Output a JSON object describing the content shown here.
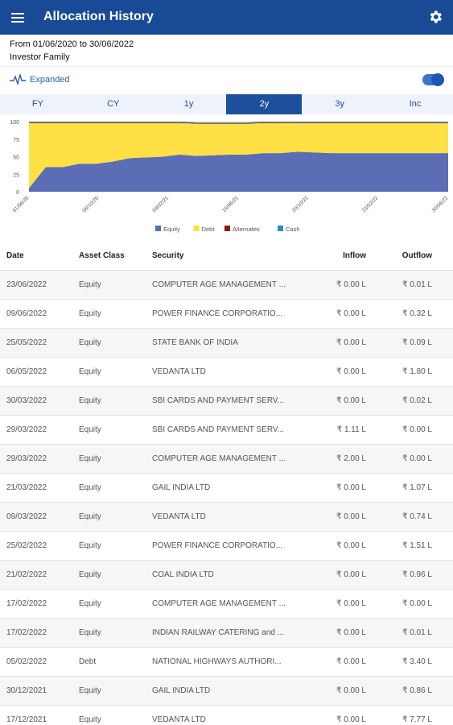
{
  "app": {
    "title": "Allocation History"
  },
  "info": {
    "date_range": "From 01/06/2020 to 30/06/2022",
    "investor": "Investor Family"
  },
  "toggle": {
    "label": "Expanded",
    "state": "on"
  },
  "tabs": [
    {
      "label": "FY",
      "active": false
    },
    {
      "label": "CY",
      "active": false
    },
    {
      "label": "1y",
      "active": false
    },
    {
      "label": "2y",
      "active": true
    },
    {
      "label": "3y",
      "active": false
    },
    {
      "label": "Inc",
      "active": false
    }
  ],
  "chart_data": {
    "type": "area",
    "stacked": true,
    "x": [
      "01/06/20",
      "16/06/20",
      "01/08/20",
      "01/09/20",
      "01/10/20",
      "01/11/20",
      "01/12/20",
      "01/01/21",
      "01/02/21",
      "01/03/21",
      "01/04/21",
      "01/05/21",
      "01/06/21",
      "01/07/21",
      "01/08/21",
      "01/09/21",
      "01/10/21",
      "01/11/21",
      "01/12/21",
      "01/01/22",
      "01/02/22",
      "01/03/22",
      "01/04/22",
      "01/05/22",
      "01/06/22",
      "30/06/22"
    ],
    "xticks": [
      "01/06/20",
      "06/10/20",
      "09/02/21",
      "15/06/21",
      "20/10/21",
      "23/02/22",
      "30/06/22"
    ],
    "ylim": [
      0,
      100
    ],
    "yticks": [
      0,
      25,
      50,
      75,
      100
    ],
    "series": [
      {
        "name": "Equity",
        "color": "#5b6db5",
        "values": [
          5,
          35,
          35,
          40,
          40,
          43,
          48,
          49,
          50,
          53,
          51,
          52,
          53,
          53,
          55,
          55,
          57,
          56,
          55,
          55,
          55,
          55,
          55,
          55,
          55,
          55
        ]
      },
      {
        "name": "Debt",
        "color": "#ffe045",
        "values": [
          93,
          63,
          63,
          58,
          58,
          55,
          50,
          49,
          48,
          45,
          46,
          45,
          44,
          44,
          43,
          43,
          41,
          42,
          43,
          43,
          43,
          43,
          43,
          43,
          43,
          43
        ]
      },
      {
        "name": "Alternates",
        "color": "#8b1a1a",
        "values": [
          1,
          1,
          1,
          1,
          1,
          1,
          1,
          1,
          1,
          1,
          1,
          1,
          1,
          1,
          1,
          1,
          1,
          1,
          1,
          1,
          1,
          1,
          1,
          1,
          1,
          1
        ]
      },
      {
        "name": "Cash",
        "color": "#2a8fb5",
        "values": [
          1,
          1,
          1,
          1,
          1,
          1,
          1,
          1,
          1,
          1,
          1,
          1,
          1,
          1,
          1,
          1,
          1,
          1,
          1,
          1,
          1,
          1,
          1,
          1,
          1,
          1
        ]
      }
    ]
  },
  "table": {
    "headers": {
      "date": "Date",
      "asset": "Asset Class",
      "security": "Security",
      "inflow": "Inflow",
      "outflow": "Outflow"
    },
    "rows": [
      {
        "date": "23/06/2022",
        "asset": "Equity",
        "security": "COMPUTER AGE MANAGEMENT ...",
        "inflow": "₹ 0.00 L",
        "outflow": "₹ 0.01 L"
      },
      {
        "date": "09/06/2022",
        "asset": "Equity",
        "security": "POWER FINANCE CORPORATIO...",
        "inflow": "₹ 0.00 L",
        "outflow": "₹ 0.32 L"
      },
      {
        "date": "25/05/2022",
        "asset": "Equity",
        "security": "STATE BANK OF INDIA",
        "inflow": "₹ 0.00 L",
        "outflow": "₹ 0.09 L"
      },
      {
        "date": "06/05/2022",
        "asset": "Equity",
        "security": "VEDANTA LTD",
        "inflow": "₹ 0.00 L",
        "outflow": "₹ 1.80 L"
      },
      {
        "date": "30/03/2022",
        "asset": "Equity",
        "security": "SBI CARDS AND PAYMENT SERV...",
        "inflow": "₹ 0.00 L",
        "outflow": "₹ 0.02 L"
      },
      {
        "date": "29/03/2022",
        "asset": "Equity",
        "security": "SBI CARDS AND PAYMENT SERV...",
        "inflow": "₹ 1.11 L",
        "outflow": "₹ 0.00 L"
      },
      {
        "date": "29/03/2022",
        "asset": "Equity",
        "security": "COMPUTER AGE MANAGEMENT ...",
        "inflow": "₹ 2.00 L",
        "outflow": "₹ 0.00 L"
      },
      {
        "date": "21/03/2022",
        "asset": "Equity",
        "security": "GAIL INDIA LTD",
        "inflow": "₹ 0.00 L",
        "outflow": "₹ 1.07 L"
      },
      {
        "date": "09/03/2022",
        "asset": "Equity",
        "security": "VEDANTA LTD",
        "inflow": "₹ 0.00 L",
        "outflow": "₹ 0.74 L"
      },
      {
        "date": "25/02/2022",
        "asset": "Equity",
        "security": "POWER FINANCE CORPORATIO...",
        "inflow": "₹ 0.00 L",
        "outflow": "₹ 1.51 L"
      },
      {
        "date": "21/02/2022",
        "asset": "Equity",
        "security": "COAL INDIA LTD",
        "inflow": "₹ 0.00 L",
        "outflow": "₹ 0.96 L"
      },
      {
        "date": "17/02/2022",
        "asset": "Equity",
        "security": "COMPUTER AGE MANAGEMENT ...",
        "inflow": "₹ 0.00 L",
        "outflow": "₹ 0.00 L"
      },
      {
        "date": "17/02/2022",
        "asset": "Equity",
        "security": "INDIAN RAILWAY CATERING and ...",
        "inflow": "₹ 0.00 L",
        "outflow": "₹ 0.01 L"
      },
      {
        "date": "05/02/2022",
        "asset": "Debt",
        "security": "NATIONAL HIGHWAYS AUTHORI...",
        "inflow": "₹ 0.00 L",
        "outflow": "₹ 3.40 L"
      },
      {
        "date": "30/12/2021",
        "asset": "Equity",
        "security": "GAIL INDIA LTD",
        "inflow": "₹ 0.00 L",
        "outflow": "₹ 0.86 L"
      },
      {
        "date": "17/12/2021",
        "asset": "Equity",
        "security": "VEDANTA LTD",
        "inflow": "₹ 0.00 L",
        "outflow": "₹ 7.77 L"
      }
    ]
  },
  "colors": {
    "primary": "#184a96",
    "accent": "#1e4f9d"
  }
}
